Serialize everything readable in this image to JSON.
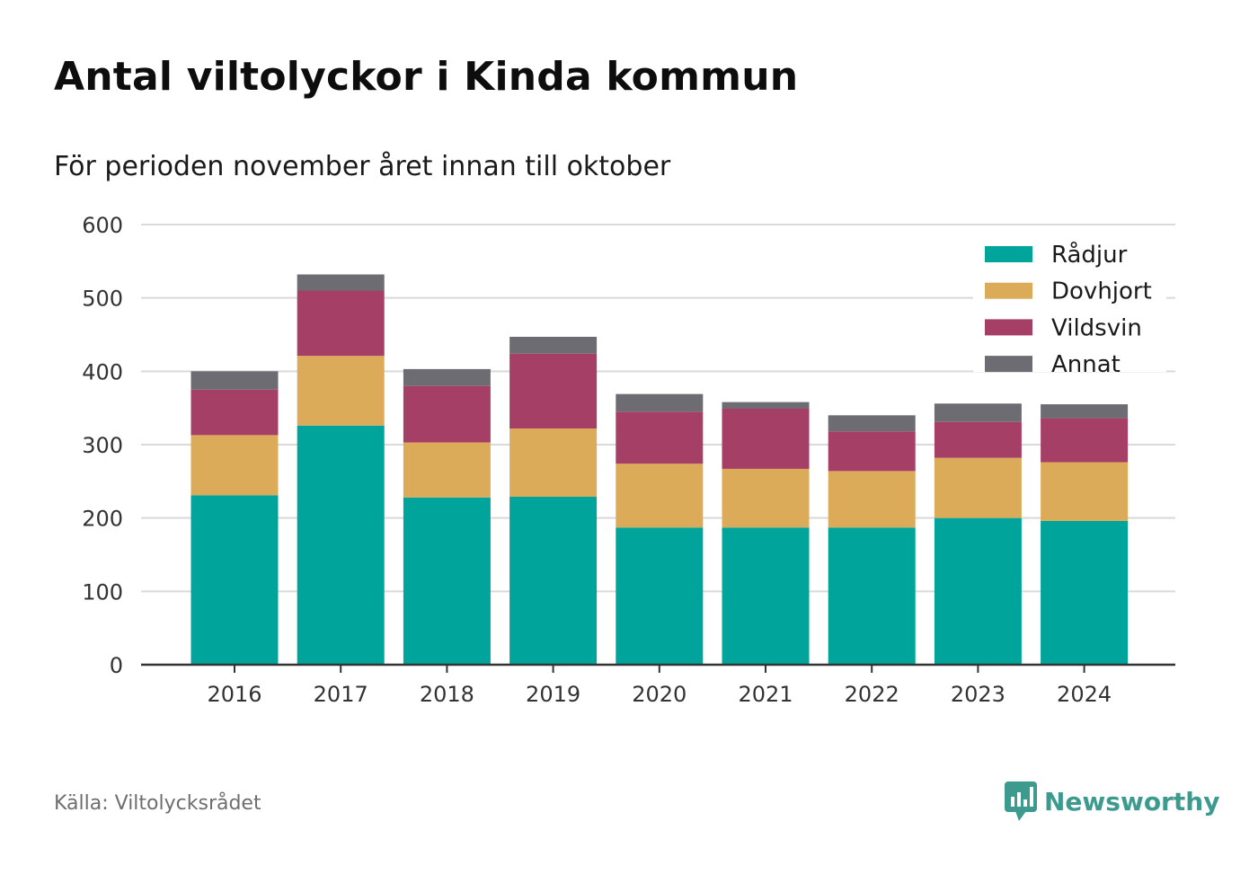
{
  "header": {
    "title": "Antal viltolyckor i Kinda kommun",
    "subtitle": "För perioden november året innan till oktober"
  },
  "footer": {
    "source": "Källa: Viltolycksrådet",
    "logo_text": "Newsworthy",
    "logo_icon": "bar-chart-speech-bubble-icon"
  },
  "colors": {
    "Rådjur": "#00a49a",
    "Dovhjort": "#dbab5a",
    "Vildsvin": "#a63f66",
    "Annat": "#6d6c72",
    "grid": "#d9d9d9",
    "axis": "#333333"
  },
  "chart_data": {
    "type": "bar",
    "stacked": true,
    "categories": [
      "2016",
      "2017",
      "2018",
      "2019",
      "2020",
      "2021",
      "2022",
      "2023",
      "2024"
    ],
    "series": [
      {
        "name": "Rådjur",
        "values": [
          231,
          326,
          228,
          229,
          187,
          187,
          187,
          200,
          196
        ]
      },
      {
        "name": "Dovhjort",
        "values": [
          82,
          95,
          75,
          93,
          87,
          80,
          77,
          82,
          80
        ]
      },
      {
        "name": "Vildsvin",
        "values": [
          62,
          89,
          77,
          102,
          71,
          82,
          54,
          49,
          60
        ]
      },
      {
        "name": "Annat",
        "values": [
          25,
          22,
          23,
          23,
          24,
          9,
          22,
          25,
          19
        ]
      }
    ],
    "yticks": [
      0,
      100,
      200,
      300,
      400,
      500,
      600
    ],
    "ylim": [
      0,
      600
    ],
    "grid": true,
    "legend": "top-right",
    "xlabel": "",
    "ylabel": ""
  }
}
